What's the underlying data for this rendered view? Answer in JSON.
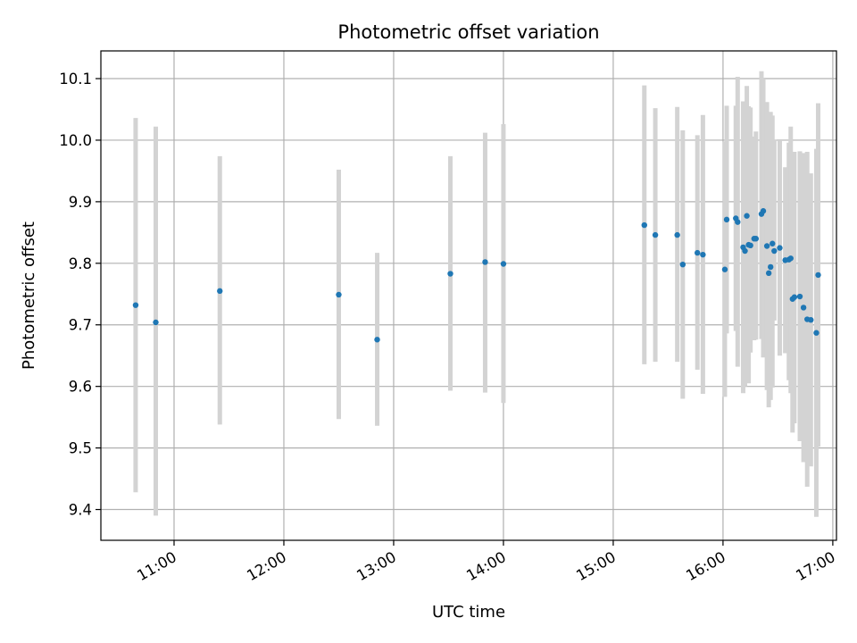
{
  "chart_data": {
    "type": "scatter",
    "title": "Photometric offset variation",
    "xlabel": "UTC time",
    "ylabel": "Photometric offset",
    "grid": true,
    "xlim": [
      "10:20",
      "17:02"
    ],
    "ylim": [
      9.35,
      10.145
    ],
    "xticks": [
      "11:00",
      "12:00",
      "13:00",
      "14:00",
      "15:00",
      "16:00",
      "17:00"
    ],
    "yticks": [
      9.4,
      9.5,
      9.6,
      9.7,
      9.8,
      9.9,
      10.0,
      10.1
    ],
    "colors": {
      "marker": "#1f77b4",
      "errorbar": "#d3d3d3"
    },
    "series": [
      {
        "x": [
          "10:39",
          "10:50",
          "11:25",
          "12:30",
          "12:51",
          "13:31",
          "13:50",
          "14:00",
          "15:17",
          "15:23",
          "15:35",
          "15:38",
          "15:46",
          "15:49",
          "16:01",
          "16:02",
          "16:07",
          "16:08",
          "16:11",
          "16:12",
          "16:13",
          "16:14",
          "16:15",
          "16:17",
          "16:18",
          "16:21",
          "16:22",
          "16:24",
          "16:25",
          "16:26",
          "16:27",
          "16:28",
          "16:31",
          "16:34",
          "16:36",
          "16:37",
          "16:38",
          "16:39",
          "16:42",
          "16:44",
          "16:46",
          "16:48",
          "16:51",
          "16:52"
        ],
        "y": [
          9.732,
          9.704,
          9.755,
          9.749,
          9.676,
          9.783,
          9.802,
          9.799,
          9.862,
          9.846,
          9.846,
          9.798,
          9.817,
          9.814,
          9.79,
          9.871,
          9.873,
          9.867,
          9.826,
          9.82,
          9.877,
          9.83,
          9.829,
          9.84,
          9.84,
          9.88,
          9.885,
          9.828,
          9.784,
          9.794,
          9.832,
          9.82,
          9.825,
          9.805,
          9.806,
          9.808,
          9.742,
          9.745,
          9.746,
          9.728,
          9.709,
          9.708,
          9.687,
          9.781
        ],
        "y_low": [
          9.428,
          9.39,
          9.538,
          9.547,
          9.536,
          9.593,
          9.59,
          9.573,
          9.636,
          9.64,
          9.64,
          9.58,
          9.627,
          9.588,
          9.583,
          9.686,
          9.69,
          9.632,
          9.589,
          9.6,
          9.66,
          9.605,
          9.655,
          9.675,
          9.676,
          9.677,
          9.647,
          9.594,
          9.566,
          9.578,
          9.598,
          9.707,
          9.65,
          9.654,
          9.61,
          9.589,
          9.525,
          9.54,
          9.511,
          9.477,
          9.437,
          9.47,
          9.388,
          9.502
        ],
        "y_high": [
          10.036,
          10.022,
          9.974,
          9.952,
          9.817,
          9.974,
          10.012,
          10.026,
          10.089,
          10.052,
          10.054,
          10.016,
          10.008,
          10.041,
          9.998,
          10.056,
          10.056,
          10.103,
          10.063,
          10.049,
          10.088,
          10.055,
          10.053,
          10.006,
          10.014,
          10.112,
          10.1,
          10.062,
          10.004,
          10.046,
          10.04,
          10.001,
          10.0,
          9.956,
          9.996,
          10.022,
          9.96,
          9.981,
          9.982,
          9.979,
          9.981,
          9.946,
          9.986,
          10.06
        ]
      }
    ]
  }
}
